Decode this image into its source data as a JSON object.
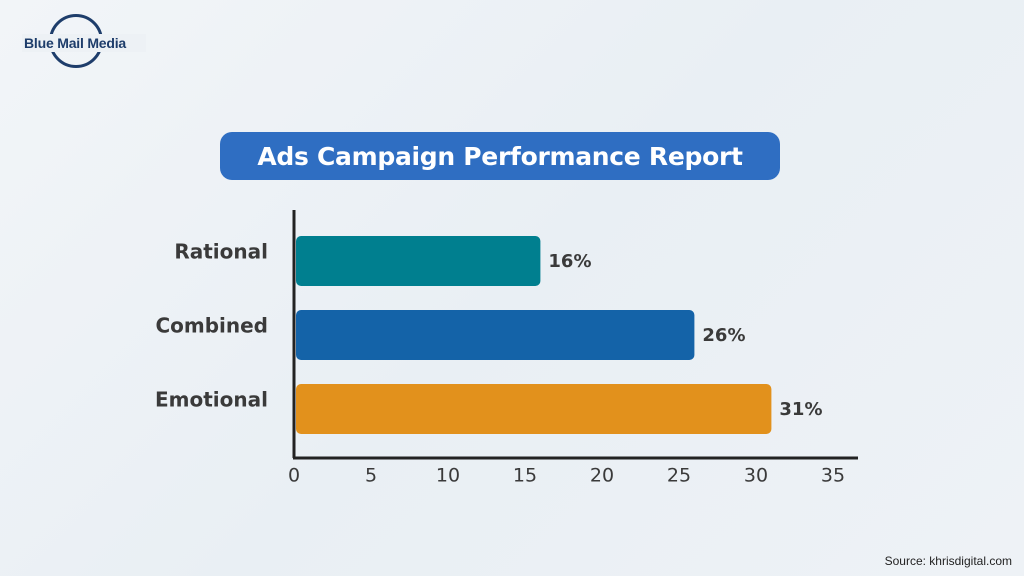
{
  "brand": {
    "name": "Blue Mail Media"
  },
  "colors": {
    "title_bg": "#2f6ec2",
    "axis": "#222222",
    "text": "#3a3a3a",
    "bars": [
      "#007f8f",
      "#1463a8",
      "#e2911c"
    ]
  },
  "chart_data": {
    "type": "bar",
    "orientation": "horizontal",
    "title": "Ads Campaign Performance Report",
    "categories": [
      "Rational",
      "Combined",
      "Emotional"
    ],
    "values": [
      16,
      26,
      31
    ],
    "data_labels": [
      "16%",
      "26%",
      "31%"
    ],
    "xlim": [
      0,
      35
    ],
    "xticks": [
      0,
      5,
      10,
      15,
      20,
      25,
      30,
      35
    ],
    "grid": false,
    "legend": "none"
  },
  "footer": {
    "source": "Source: khrisdigital.com"
  }
}
